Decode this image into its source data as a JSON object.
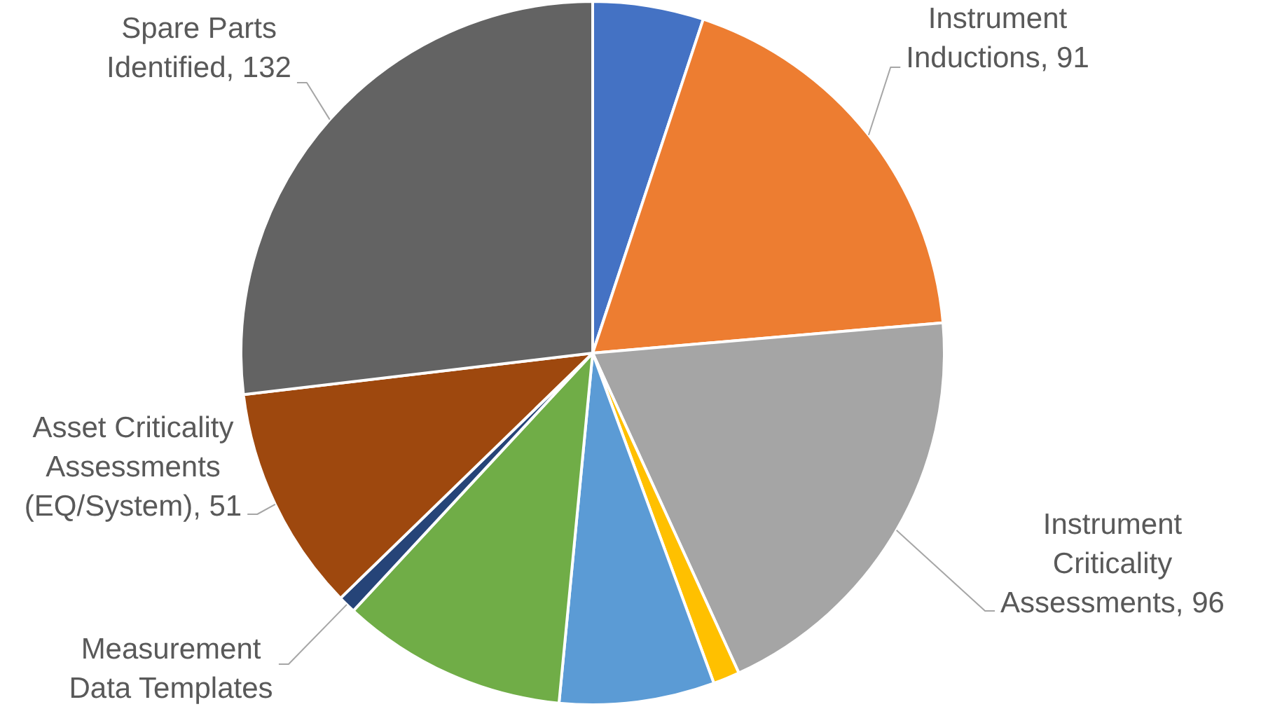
{
  "chart_data": {
    "type": "pie",
    "categories": [
      null,
      "Instrument Inductions",
      "Instrument Criticality Assessments",
      null,
      null,
      null,
      "Measurement Data Templates",
      "Asset Criticality Assessments (EQ/System)",
      "Spare Parts Identified"
    ],
    "values": [
      25,
      91,
      96,
      6,
      35,
      51,
      4,
      51,
      132
    ],
    "value_labels": [
      null,
      "91",
      "96",
      null,
      null,
      null,
      null,
      "51",
      "132"
    ],
    "colors": [
      "#4472c4",
      "#ed7d31",
      "#a5a5a5",
      "#ffc000",
      "#5b9bd5",
      "#70ad47",
      "#264478",
      "#9e480e",
      "#636363"
    ],
    "legend": false
  }
}
